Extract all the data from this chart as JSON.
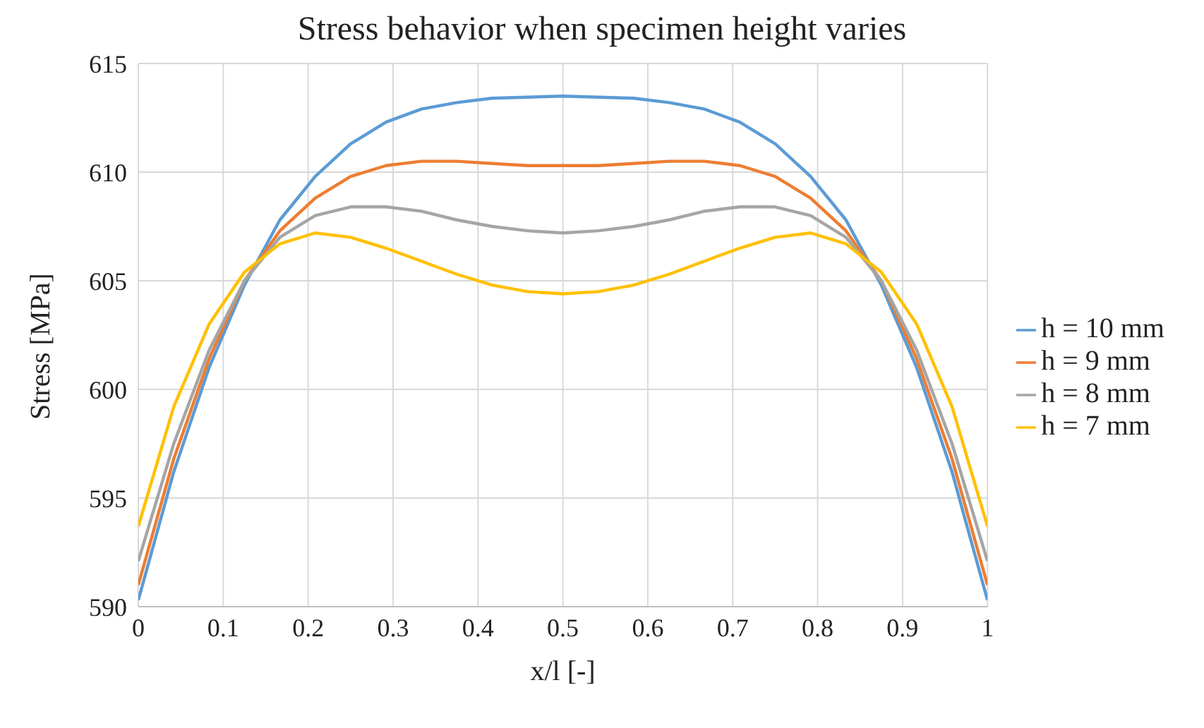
{
  "chart_data": {
    "type": "line",
    "title": "Stress behavior when specimen height varies",
    "xlabel": "x/l [-]",
    "ylabel": "Stress [MPa]",
    "x": [
      0,
      0.0417,
      0.0833,
      0.125,
      0.1667,
      0.2083,
      0.25,
      0.2917,
      0.3333,
      0.375,
      0.4167,
      0.4583,
      0.5,
      0.5417,
      0.5833,
      0.625,
      0.6667,
      0.7083,
      0.75,
      0.7917,
      0.8333,
      0.875,
      0.9167,
      0.9583,
      1
    ],
    "series": [
      {
        "name": "h = 10 mm",
        "color": "#5b9bd5",
        "values": [
          590.3,
          596.2,
          601.0,
          604.8,
          607.8,
          609.8,
          611.3,
          612.3,
          612.9,
          613.2,
          613.4,
          613.45,
          613.5,
          613.45,
          613.4,
          613.2,
          612.9,
          612.3,
          611.3,
          609.8,
          607.8,
          604.8,
          601.0,
          596.2,
          590.3
        ]
      },
      {
        "name": "h = 9 mm",
        "color": "#ed7d31",
        "values": [
          591.0,
          596.8,
          601.4,
          605.0,
          607.3,
          608.8,
          609.8,
          610.3,
          610.5,
          610.5,
          610.4,
          610.3,
          610.3,
          610.3,
          610.4,
          610.5,
          610.5,
          610.3,
          609.8,
          608.8,
          607.3,
          605.0,
          601.4,
          596.8,
          591.0
        ]
      },
      {
        "name": "h = 8 mm",
        "color": "#a5a5a5",
        "values": [
          592.1,
          597.5,
          601.8,
          605.0,
          607.0,
          608.0,
          608.4,
          608.4,
          608.2,
          607.8,
          607.5,
          607.3,
          607.2,
          607.3,
          607.5,
          607.8,
          608.2,
          608.4,
          608.4,
          608.0,
          607.0,
          605.0,
          601.8,
          597.5,
          592.1
        ]
      },
      {
        "name": "h = 7 mm",
        "color": "#ffc000",
        "values": [
          593.7,
          599.2,
          603.0,
          605.4,
          606.7,
          607.2,
          607.0,
          606.5,
          605.9,
          605.3,
          604.8,
          604.5,
          604.4,
          604.5,
          604.8,
          605.3,
          605.9,
          606.5,
          607.0,
          607.2,
          606.7,
          605.4,
          603.0,
          599.2,
          593.7
        ]
      }
    ],
    "xlim": [
      0,
      1
    ],
    "xticks": [
      0,
      0.1,
      0.2,
      0.3,
      0.4,
      0.5,
      0.6,
      0.7,
      0.8,
      0.9,
      1
    ],
    "ylim": [
      590,
      615
    ],
    "yticks": [
      590,
      595,
      600,
      605,
      610,
      615
    ],
    "grid": true,
    "legend": "right",
    "marker": "none",
    "line_style": "solid"
  }
}
